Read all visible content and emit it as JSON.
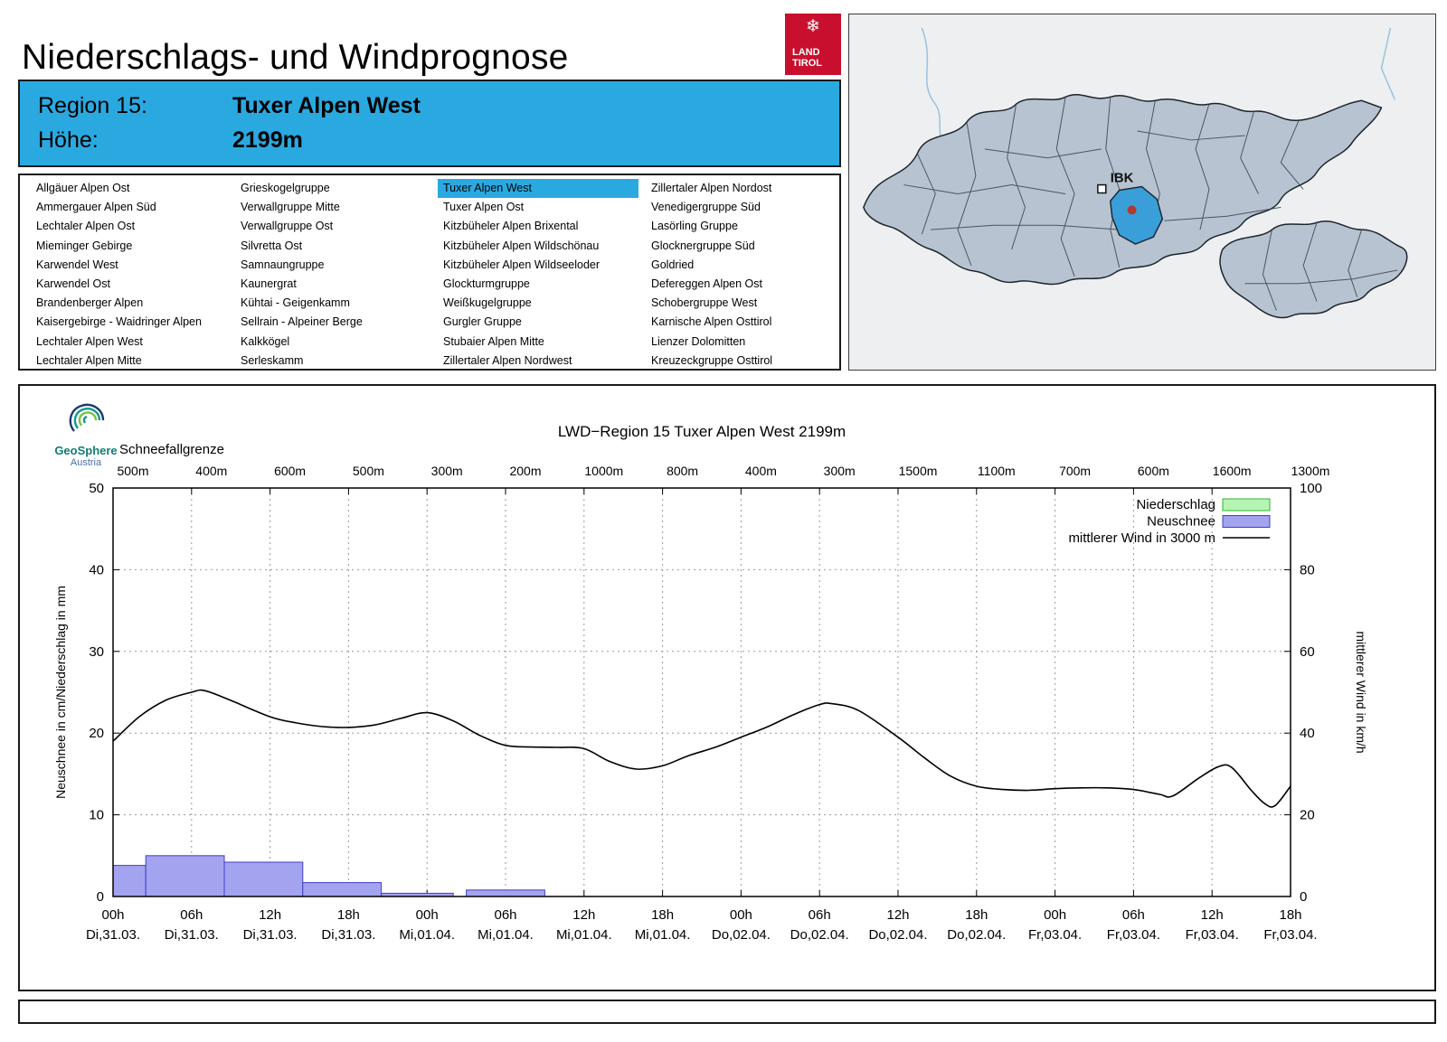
{
  "header": {
    "title": "Niederschlags- und Windprognose",
    "logo": {
      "line1": "LAND",
      "line2": "TIROL"
    }
  },
  "colors": {
    "accent_blue": "#2AA9E1",
    "land_tirol_red": "#C8102E",
    "map_highlight": "#3A9FD8"
  },
  "region_info": {
    "region_label": "Region 15:",
    "region_value": "Tuxer Alpen West",
    "altitude_label": "Höhe:",
    "altitude_value": "2199m"
  },
  "region_list": {
    "selected": "Tuxer Alpen West",
    "columns": [
      [
        "Allgäuer Alpen Ost",
        "Ammergauer Alpen Süd",
        "Lechtaler Alpen Ost",
        "Mieminger Gebirge",
        "Karwendel West",
        "Karwendel Ost",
        "Brandenberger Alpen",
        "Kaisergebirge - Waidringer Alpen",
        "Lechtaler Alpen West",
        "Lechtaler Alpen Mitte"
      ],
      [
        "Grieskogelgruppe",
        "Verwallgruppe Mitte",
        "Verwallgruppe Ost",
        "Silvretta Ost",
        "Samnaungruppe",
        "Kaunergrat",
        "Kühtai - Geigenkamm",
        "Sellrain - Alpeiner Berge",
        "Kalkkögel",
        "Serleskamm"
      ],
      [
        "Tuxer Alpen West",
        "Tuxer Alpen Ost",
        "Kitzbüheler Alpen Brixental",
        "Kitzbüheler Alpen Wildschönau",
        "Kitzbüheler Alpen Wildseeloder",
        "Glockturmgruppe",
        "Weißkugelgruppe",
        "Gurgler Gruppe",
        "Stubaier Alpen Mitte",
        "Zillertaler Alpen Nordwest"
      ],
      [
        "Zillertaler Alpen Nordost",
        "Venedigergruppe Süd",
        "Lasörling Gruppe",
        "Glocknergruppe Süd",
        "Goldried",
        "Defereggen Alpen Ost",
        "Schobergruppe West",
        "Karnische Alpen Osttirol",
        "Lienzer Dolomitten",
        "Kreuzeckgruppe Osttirol"
      ]
    ]
  },
  "map": {
    "city_label": "IBK"
  },
  "brand": {
    "name": "GeoSphere",
    "sub": "Austria"
  },
  "chart_data": {
    "type": "mixed",
    "title": "LWD−Region 15 Tuxer Alpen West 2199m",
    "ylabel_left": "Neuschnee in cm/Niederschlag in mm",
    "ylabel_right": "mittlerer Wind in km/h",
    "ylim_left": [
      0,
      50
    ],
    "ylim_right": [
      0,
      100
    ],
    "yticks_left": [
      0,
      10,
      20,
      30,
      40,
      50
    ],
    "yticks_right": [
      0,
      20,
      40,
      60,
      80,
      100
    ],
    "x_total_hours": 90,
    "x_tick_step_hours": 6,
    "xticks": [
      {
        "time": "00h",
        "date": "Di,31.03."
      },
      {
        "time": "06h",
        "date": "Di,31.03."
      },
      {
        "time": "12h",
        "date": "Di,31.03."
      },
      {
        "time": "18h",
        "date": "Di,31.03."
      },
      {
        "time": "00h",
        "date": "Mi,01.04."
      },
      {
        "time": "06h",
        "date": "Mi,01.04."
      },
      {
        "time": "12h",
        "date": "Mi,01.04."
      },
      {
        "time": "18h",
        "date": "Mi,01.04."
      },
      {
        "time": "00h",
        "date": "Do,02.04."
      },
      {
        "time": "06h",
        "date": "Do,02.04."
      },
      {
        "time": "12h",
        "date": "Do,02.04."
      },
      {
        "time": "18h",
        "date": "Do,02.04."
      },
      {
        "time": "00h",
        "date": "Fr,03.04."
      },
      {
        "time": "06h",
        "date": "Fr,03.04."
      },
      {
        "time": "12h",
        "date": "Fr,03.04."
      },
      {
        "time": "18h",
        "date": "Fr,03.04."
      }
    ],
    "schneefallgrenze": {
      "label": "Schneefallgrenze",
      "values": [
        "500m",
        "400m",
        "600m",
        "500m",
        "300m",
        "200m",
        "1000m",
        "800m",
        "400m",
        "300m",
        "1500m",
        "1100m",
        "700m",
        "600m",
        "1600m",
        "1300m"
      ]
    },
    "legend": [
      {
        "label": "Niederschlag",
        "swatch": "box",
        "color": "#b4f5b4",
        "border": "#2db82d"
      },
      {
        "label": "Neuschnee",
        "swatch": "box",
        "color": "#a3a3f0",
        "border": "#4040c8"
      },
      {
        "label": "mittlerer Wind in 3000 m",
        "swatch": "line",
        "color": "#000000"
      }
    ],
    "neuschnee_bars_cm": [
      {
        "from_h": 0,
        "to_h": 2.5,
        "cm": 3.8
      },
      {
        "from_h": 2.5,
        "to_h": 8.5,
        "cm": 5.0
      },
      {
        "from_h": 8.5,
        "to_h": 14.5,
        "cm": 4.2
      },
      {
        "from_h": 14.5,
        "to_h": 20.5,
        "cm": 1.7
      },
      {
        "from_h": 20.5,
        "to_h": 26,
        "cm": 0.4
      },
      {
        "from_h": 27,
        "to_h": 33,
        "cm": 0.8
      }
    ],
    "wind_line_kmh": [
      [
        0,
        38
      ],
      [
        2,
        44
      ],
      [
        4,
        48
      ],
      [
        6,
        50
      ],
      [
        7,
        50.4
      ],
      [
        9,
        48
      ],
      [
        12,
        44
      ],
      [
        14,
        42.5
      ],
      [
        16,
        41.6
      ],
      [
        18,
        41.4
      ],
      [
        20,
        42
      ],
      [
        22,
        43.6
      ],
      [
        24,
        45
      ],
      [
        26,
        43
      ],
      [
        28,
        39.5
      ],
      [
        30,
        37
      ],
      [
        32,
        36.6
      ],
      [
        34,
        36.5
      ],
      [
        36,
        36.2
      ],
      [
        38,
        33
      ],
      [
        40,
        31.2
      ],
      [
        42,
        32
      ],
      [
        44,
        34.5
      ],
      [
        46,
        36.5
      ],
      [
        48,
        39
      ],
      [
        50,
        41.5
      ],
      [
        52,
        44.5
      ],
      [
        54,
        47
      ],
      [
        55,
        47.2
      ],
      [
        57,
        45.5
      ],
      [
        60,
        39
      ],
      [
        62,
        34
      ],
      [
        64,
        29.5
      ],
      [
        66,
        27
      ],
      [
        68,
        26.2
      ],
      [
        70,
        26
      ],
      [
        72,
        26.4
      ],
      [
        74,
        26.6
      ],
      [
        76,
        26.6
      ],
      [
        78,
        26.2
      ],
      [
        80,
        25
      ],
      [
        81,
        24.6
      ],
      [
        83,
        29
      ],
      [
        84.5,
        31.8
      ],
      [
        85.5,
        31.6
      ],
      [
        87,
        26
      ],
      [
        88,
        22.8
      ],
      [
        88.8,
        22.2
      ],
      [
        90,
        27
      ]
    ]
  }
}
